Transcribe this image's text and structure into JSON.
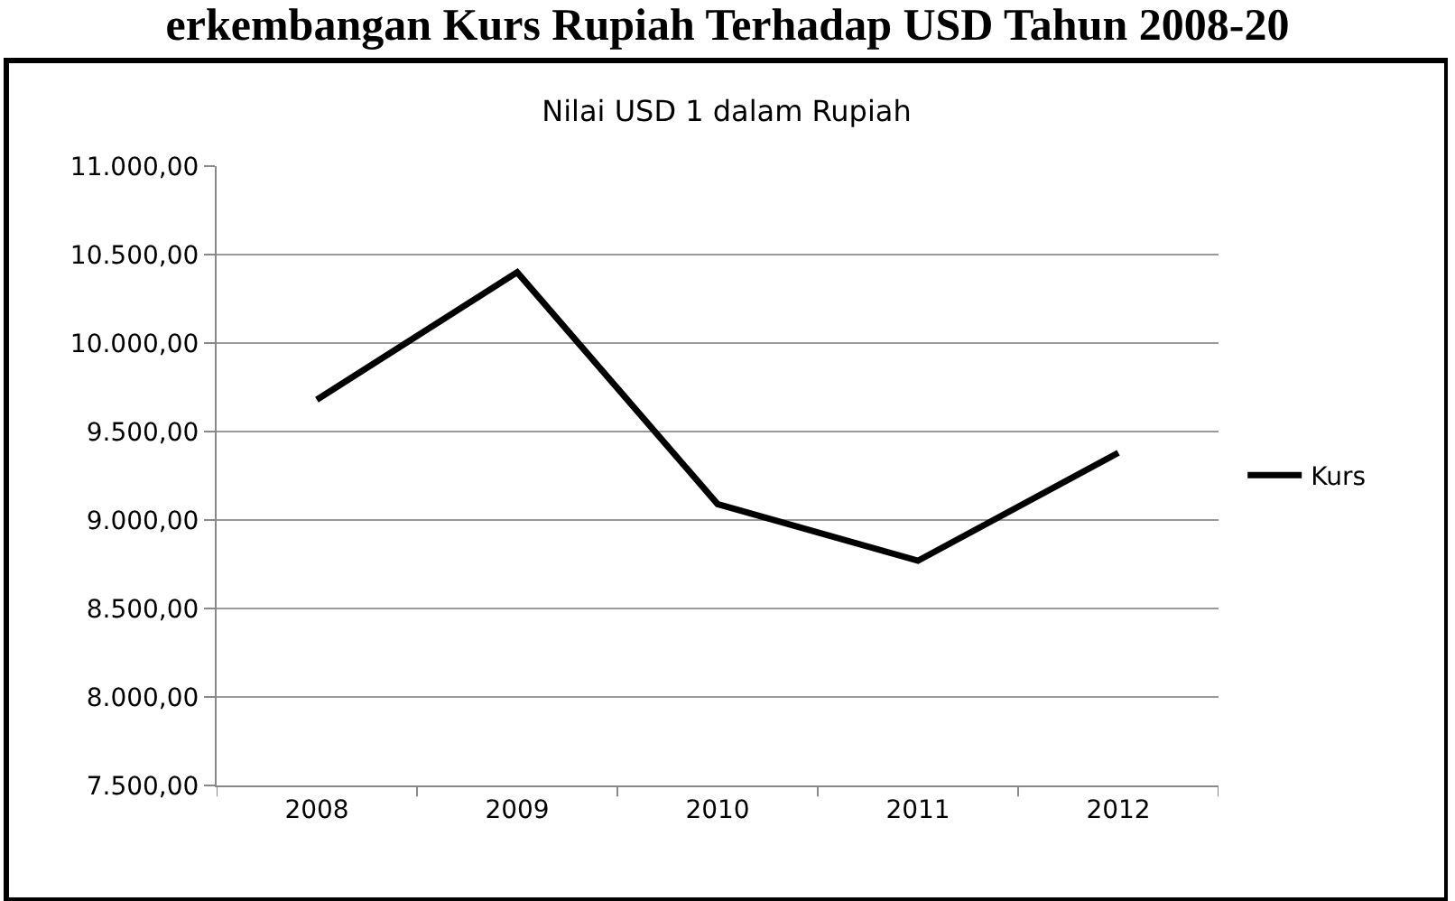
{
  "chart_data": {
    "type": "line",
    "title": "erkembangan Kurs Rupiah Terhadap USD Tahun 2008-20",
    "subtitle": "Nilai USD 1 dalam Rupiah",
    "categories": [
      "2008",
      "2009",
      "2010",
      "2011",
      "2012"
    ],
    "series": [
      {
        "name": "Kurs",
        "color": "#000000",
        "values": [
          9680,
          10400,
          9090,
          8770,
          9380
        ]
      }
    ],
    "ylim": [
      7500,
      11000
    ],
    "yticks": [
      {
        "value": 7500,
        "label": "7.500,00"
      },
      {
        "value": 8000,
        "label": "8.000,00"
      },
      {
        "value": 8500,
        "label": "8.500,00"
      },
      {
        "value": 9000,
        "label": "9.000,00"
      },
      {
        "value": 9500,
        "label": "9.500,00"
      },
      {
        "value": 10000,
        "label": "10.000,00"
      },
      {
        "value": 10500,
        "label": "10.500,00"
      },
      {
        "value": 11000,
        "label": "11.000,00"
      }
    ],
    "grid": "y",
    "legend": "right",
    "marker": "none",
    "line_style": "solid"
  }
}
